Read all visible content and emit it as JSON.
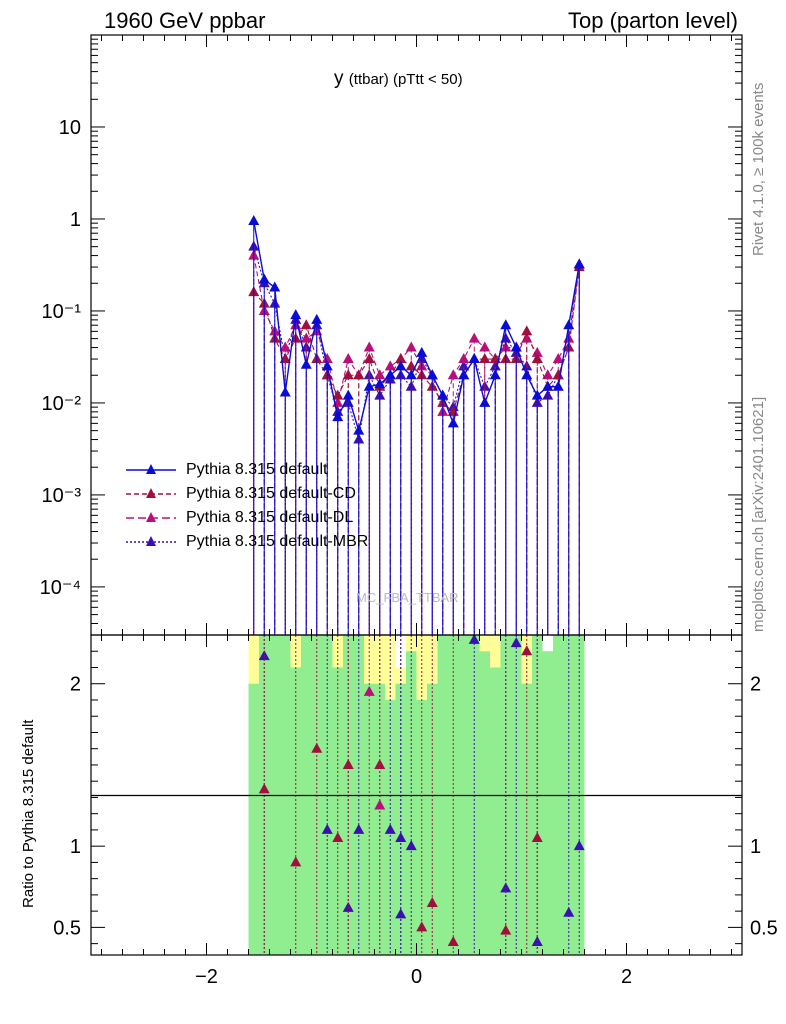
{
  "header": {
    "left": "1960 GeV ppbar",
    "right": "Top (parton level)"
  },
  "side_text": {
    "rivet": "Rivet 4.1.0, ≥ 100k events",
    "mcplots": "mcplots.cern.ch [arXiv:2401.10621]"
  },
  "colors": {
    "default": "#0b0bd6",
    "cd": "#a0103f",
    "dl": "#b8107a",
    "mbr": "#3a10b0",
    "band_inner": "#90ee90",
    "band_outer": "#ffff99"
  },
  "chart_data": [
    {
      "type": "line",
      "scale": "log",
      "title": "y",
      "title_sub": "(ttbar) (pTtt < 50)",
      "watermark": "MC_FBA_TTBAR",
      "xlim": [
        -3.1,
        3.1
      ],
      "ylim": [
        3e-05,
        100
      ],
      "y_ticks": [
        {
          "value": 10,
          "label": "10"
        },
        {
          "value": 1,
          "label": "1"
        },
        {
          "value": 0.1,
          "label": "10⁻¹"
        },
        {
          "value": 0.01,
          "label": "10⁻²"
        },
        {
          "value": 0.001,
          "label": "10⁻³"
        },
        {
          "value": 0.0001,
          "label": "10⁻⁴"
        }
      ],
      "x": [
        -1.55,
        -1.45,
        -1.35,
        -1.25,
        -1.15,
        -1.05,
        -0.95,
        -0.85,
        -0.75,
        -0.65,
        -0.55,
        -0.45,
        -0.35,
        -0.25,
        -0.15,
        -0.05,
        0.05,
        0.15,
        0.25,
        0.35,
        0.45,
        0.55,
        0.65,
        0.75,
        0.85,
        0.95,
        1.05,
        1.15,
        1.25,
        1.35,
        1.45,
        1.55
      ],
      "series": [
        {
          "name": "Pythia 8.315 default",
          "key": "default",
          "style": "solid",
          "values": [
            0.95,
            0.22,
            0.18,
            0.013,
            0.09,
            0.026,
            0.08,
            0.025,
            0.007,
            0.012,
            0.005,
            0.015,
            0.016,
            0.02,
            0.025,
            0.02,
            0.035,
            0.02,
            0.012,
            0.006,
            0.02,
            0.03,
            0.01,
            0.02,
            0.07,
            0.04,
            0.02,
            0.012,
            0.015,
            0.015,
            0.07,
            0.32
          ]
        },
        {
          "name": "Pythia 8.315 default-CD",
          "key": "cd",
          "style": "dashed",
          "values": [
            0.16,
            0.12,
            0.05,
            0.03,
            0.05,
            0.07,
            0.03,
            0.02,
            0.012,
            0.02,
            0.02,
            0.03,
            0.015,
            0.02,
            0.03,
            0.025,
            0.02,
            0.015,
            0.01,
            0.008,
            0.02,
            0.03,
            0.03,
            0.03,
            0.03,
            0.03,
            0.06,
            0.03,
            0.015,
            0.02,
            0.04,
            0.3
          ]
        },
        {
          "name": "Pythia 8.315 default-DL",
          "key": "dl",
          "style": "dashed",
          "values": [
            0.4,
            0.1,
            0.06,
            0.04,
            0.07,
            0.05,
            0.06,
            0.03,
            0.01,
            0.03,
            0.02,
            0.04,
            0.02,
            0.025,
            0.03,
            0.04,
            0.025,
            0.02,
            0.008,
            0.02,
            0.03,
            0.05,
            0.04,
            0.03,
            0.04,
            0.04,
            0.05,
            0.035,
            0.02,
            0.03,
            0.05,
            0.32
          ]
        },
        {
          "name": "Pythia 8.315 default-MBR",
          "key": "mbr",
          "style": "dotted",
          "values": [
            0.5,
            0.2,
            0.12,
            0.03,
            0.08,
            0.04,
            0.07,
            0.02,
            0.008,
            0.01,
            0.004,
            0.02,
            0.012,
            0.018,
            0.02,
            0.015,
            0.03,
            0.02,
            0.012,
            0.009,
            0.025,
            0.03,
            0.015,
            0.025,
            0.05,
            0.035,
            0.025,
            0.01,
            0.012,
            0.02,
            0.04,
            0.32
          ]
        }
      ]
    },
    {
      "type": "line",
      "scale": "linear",
      "ylabel": "Ratio to Pythia 8.315 default",
      "xlim": [
        -3.1,
        3.1
      ],
      "ylim": [
        0.33,
        2.3
      ],
      "x_ticks": [
        {
          "value": -2,
          "label": "−2"
        },
        {
          "value": 0,
          "label": "0"
        },
        {
          "value": 2,
          "label": "2"
        }
      ],
      "y_ticks": [
        {
          "value": 2,
          "label": "2"
        },
        {
          "value": 1,
          "label": "1"
        },
        {
          "value": 0.5,
          "label": "0.5"
        }
      ],
      "band_x_edges": [
        -1.6,
        1.6
      ],
      "band_inner_lo": [
        0.33,
        0.33,
        0.33,
        0.33,
        0.33,
        0.33,
        0.33,
        0.33,
        0.33,
        0.33,
        0.33,
        0.33,
        0.33,
        0.33,
        0.33,
        0.33,
        0.33,
        0.33,
        0.33,
        0.33,
        0.33,
        0.33,
        0.33,
        0.33,
        0.33,
        0.33,
        0.33,
        0.33,
        0.33,
        0.33,
        0.33,
        0.33
      ],
      "band_inner_hi": [
        2.0,
        2.3,
        2.3,
        2.3,
        2.1,
        2.3,
        2.3,
        2.3,
        2.1,
        2.3,
        2.3,
        2.0,
        2.0,
        1.9,
        2.0,
        2.2,
        1.9,
        2.0,
        2.3,
        2.3,
        2.3,
        2.3,
        2.2,
        2.1,
        2.3,
        2.3,
        2.0,
        2.3,
        2.2,
        2.3,
        2.3,
        2.3
      ],
      "band_outer_hi": [
        2.3,
        2.3,
        2.3,
        2.3,
        2.3,
        2.3,
        2.3,
        2.3,
        2.3,
        2.3,
        2.3,
        2.3,
        2.3,
        2.3,
        2.1,
        2.3,
        2.3,
        2.3,
        2.3,
        2.3,
        2.3,
        2.3,
        2.3,
        2.3,
        2.3,
        2.3,
        2.3,
        2.3,
        2.2,
        2.3,
        2.3,
        2.3
      ],
      "markers": [
        {
          "x": -1.45,
          "y": 2.17,
          "key": "mbr"
        },
        {
          "x": -1.45,
          "y": 1.35,
          "key": "cd"
        },
        {
          "x": -1.15,
          "y": 0.9,
          "key": "cd"
        },
        {
          "x": -0.95,
          "y": 1.6,
          "key": "cd"
        },
        {
          "x": -0.85,
          "y": 1.1,
          "key": "mbr"
        },
        {
          "x": -0.75,
          "y": 1.05,
          "key": "cd"
        },
        {
          "x": -0.65,
          "y": 0.62,
          "key": "mbr"
        },
        {
          "x": -0.65,
          "y": 1.5,
          "key": "cd"
        },
        {
          "x": -0.55,
          "y": 1.1,
          "key": "mbr"
        },
        {
          "x": -0.45,
          "y": 1.95,
          "key": "dl"
        },
        {
          "x": -0.35,
          "y": 1.5,
          "key": "cd"
        },
        {
          "x": -0.35,
          "y": 1.25,
          "key": "dl"
        },
        {
          "x": -0.25,
          "y": 1.1,
          "key": "mbr"
        },
        {
          "x": -0.15,
          "y": 1.05,
          "key": "mbr"
        },
        {
          "x": -0.15,
          "y": 0.58,
          "key": "mbr"
        },
        {
          "x": -0.05,
          "y": 1.0,
          "key": "mbr"
        },
        {
          "x": 0.05,
          "y": 0.5,
          "key": "cd"
        },
        {
          "x": 0.15,
          "y": 0.65,
          "key": "cd"
        },
        {
          "x": 0.35,
          "y": 0.41,
          "key": "cd"
        },
        {
          "x": 0.55,
          "y": 2.27,
          "key": "mbr"
        },
        {
          "x": 0.85,
          "y": 0.74,
          "key": "mbr"
        },
        {
          "x": 0.85,
          "y": 0.48,
          "key": "cd"
        },
        {
          "x": 0.95,
          "y": 2.25,
          "key": "mbr"
        },
        {
          "x": 1.05,
          "y": 2.2,
          "key": "cd"
        },
        {
          "x": 1.15,
          "y": 0.41,
          "key": "mbr"
        },
        {
          "x": 1.15,
          "y": 1.05,
          "key": "cd"
        },
        {
          "x": 1.45,
          "y": 0.59,
          "key": "mbr"
        },
        {
          "x": 1.55,
          "y": 1.0,
          "key": "mbr"
        }
      ]
    }
  ]
}
